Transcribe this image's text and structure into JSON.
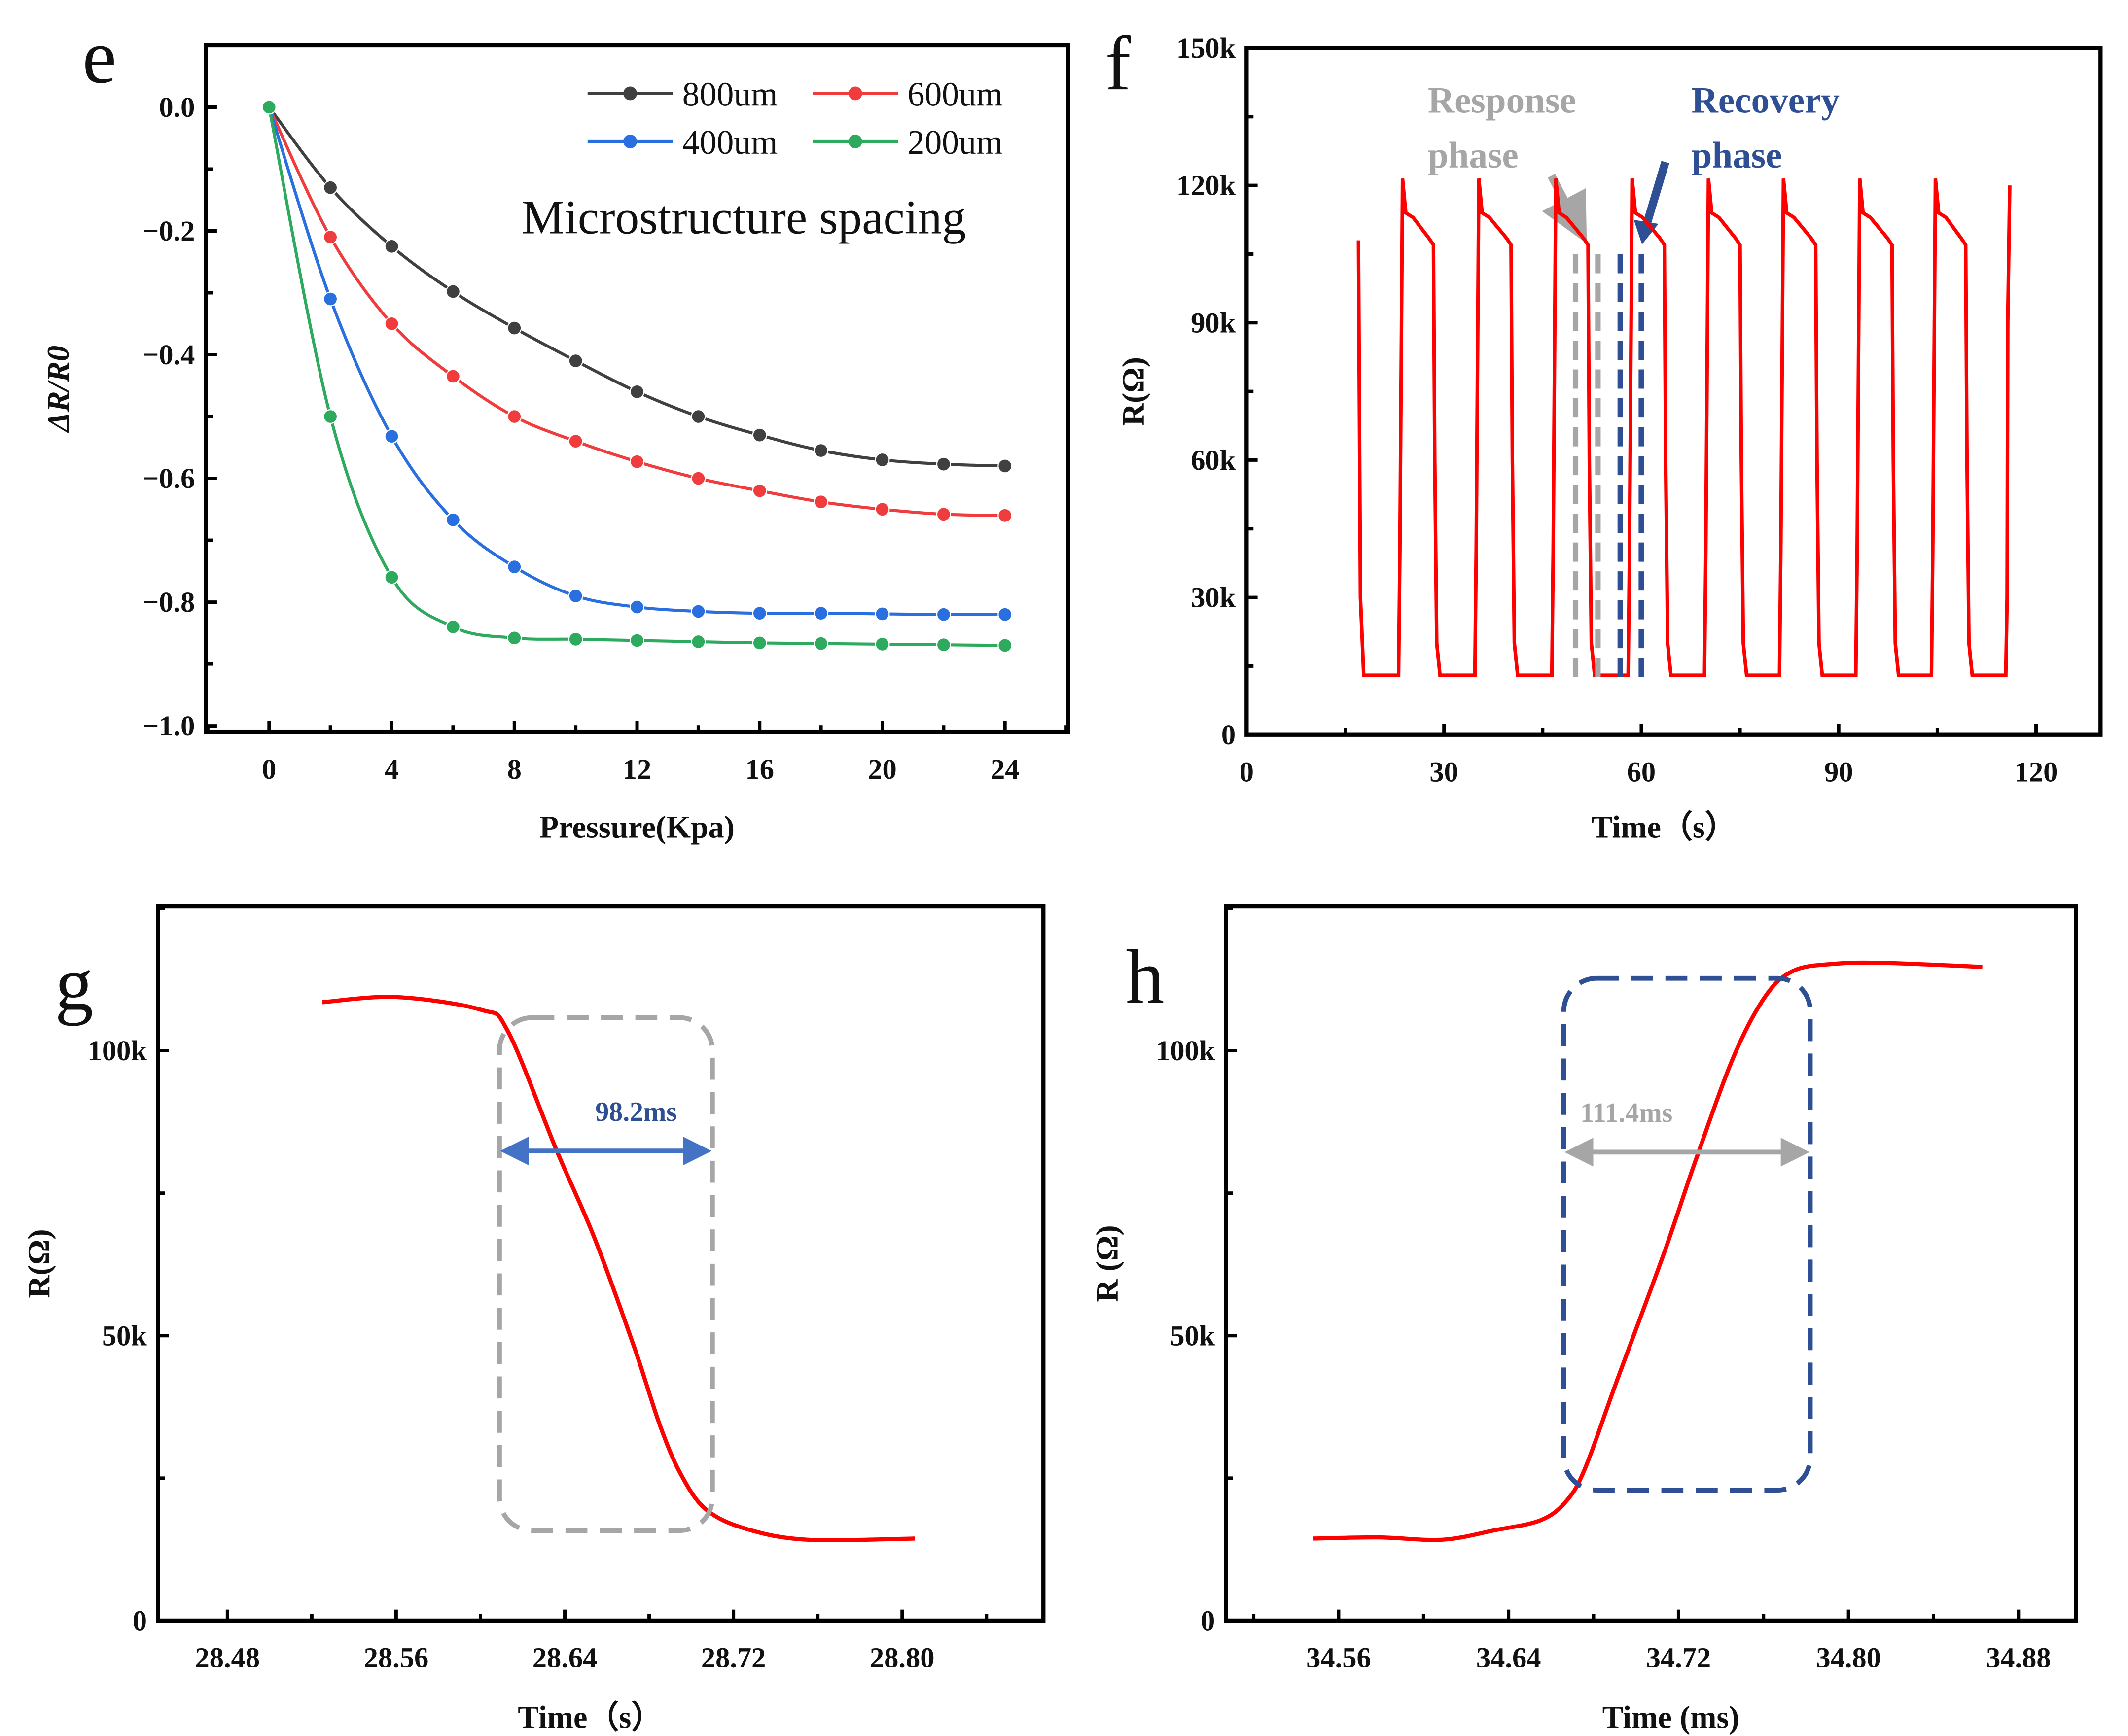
{
  "colors": {
    "red": "#ff0000",
    "gray_annot": "#a6a6a6",
    "blue_annot": "#2e4f94",
    "arrow_blue": "#4472c4"
  },
  "chart_data": [
    {
      "panel": "e",
      "type": "line",
      "xlabel": "Pressure(Kpa)",
      "ylabel": "ΔR/R0",
      "annotation": "Microstructure spacing",
      "xlim": [
        -2.06,
        26.06
      ],
      "ylim": [
        -1.01,
        0.1
      ],
      "xticks": [
        0,
        4,
        8,
        12,
        16,
        20,
        24
      ],
      "xtick_labels": [
        "0",
        "4",
        "8",
        "12",
        "16",
        "20",
        "24"
      ],
      "xminor": 2,
      "yticks": [
        0,
        -0.2,
        -0.4,
        -0.6,
        -0.8,
        -1.0
      ],
      "ytick_labels": [
        "0.0",
        "−0.2",
        "−0.4",
        "−0.6",
        "−0.8",
        "−1.0"
      ],
      "yminor": 0.1,
      "legend_position": "top-right",
      "x": [
        0,
        2,
        4,
        6,
        8,
        10,
        12,
        14,
        16,
        18,
        20,
        22,
        24
      ],
      "series": [
        {
          "name": "800um",
          "color": "#404040",
          "values": [
            0,
            -0.13,
            -0.225,
            -0.298,
            -0.357,
            -0.41,
            -0.46,
            -0.5,
            -0.53,
            -0.555,
            -0.57,
            -0.577,
            -0.58
          ]
        },
        {
          "name": "600um",
          "color": "#f03c3c",
          "values": [
            0,
            -0.21,
            -0.35,
            -0.435,
            -0.5,
            -0.54,
            -0.573,
            -0.6,
            -0.62,
            -0.638,
            -0.65,
            -0.658,
            -0.66
          ]
        },
        {
          "name": "400um",
          "color": "#2a6fe0",
          "values": [
            0,
            -0.31,
            -0.532,
            -0.667,
            -0.743,
            -0.79,
            -0.808,
            -0.815,
            -0.818,
            -0.818,
            -0.819,
            -0.82,
            -0.82
          ]
        },
        {
          "name": "200um",
          "color": "#2eaa5e",
          "values": [
            0,
            -0.5,
            -0.76,
            -0.84,
            -0.858,
            -0.86,
            -0.862,
            -0.864,
            -0.866,
            -0.867,
            -0.868,
            -0.869,
            -0.87
          ]
        }
      ]
    },
    {
      "panel": "f",
      "type": "line",
      "xlabel": "Time（s）",
      "ylabel": "R(Ω)",
      "xlim": [
        0,
        129.8
      ],
      "ylim": [
        0,
        150000
      ],
      "xticks": [
        0,
        30,
        60,
        90,
        120
      ],
      "xtick_labels": [
        "0",
        "30",
        "60",
        "90",
        "120"
      ],
      "xminor": 15,
      "yticks": [
        0,
        30000,
        60000,
        90000,
        120000,
        150000
      ],
      "ytick_labels": [
        "0",
        "30k",
        "60k",
        "90k",
        "120k",
        "150k"
      ],
      "yminor": 15000,
      "signal": {
        "start": {
          "t": 17,
          "r": 108000
        },
        "baseline": 13000,
        "peak": 121500,
        "plateau_end": 107000,
        "cycles": [
          {
            "rise": 23.3,
            "fall": 28.5
          },
          {
            "rise": 34.9,
            "fall": 40.3
          },
          {
            "rise": 46.6,
            "fall": 52.0
          },
          {
            "rise": 58.2,
            "fall": 63.6
          },
          {
            "rise": 69.8,
            "fall": 75.1
          },
          {
            "rise": 81.2,
            "fall": 86.6
          },
          {
            "rise": 92.8,
            "fall": 98.2
          },
          {
            "rise": 104.3,
            "fall": 109.4
          }
        ],
        "end": {
          "rise": 115.6,
          "t": 116,
          "r": 120000
        }
      },
      "response_label": [
        "Response",
        "phase"
      ],
      "recovery_label": [
        "Recovery",
        "phase"
      ],
      "response_lines_t": [
        50.0,
        53.4
      ],
      "recovery_lines_t": [
        56.8,
        60.0
      ],
      "phase_lines_r": [
        105000,
        11000
      ]
    },
    {
      "panel": "g",
      "type": "line",
      "xlabel": "Time（s）",
      "ylabel": "R(Ω)",
      "xlim": [
        28.447,
        28.867
      ],
      "ylim": [
        0,
        125300
      ],
      "xticks": [
        28.48,
        28.56,
        28.64,
        28.72,
        28.8
      ],
      "xtick_labels": [
        "28.48",
        "28.56",
        "28.64",
        "28.72",
        "28.80"
      ],
      "xminor": 0.04,
      "yticks": [
        0,
        50000,
        100000
      ],
      "ytick_labels": [
        "0",
        "50k",
        "100k"
      ],
      "yminor": 25000,
      "x": [
        28.525,
        28.56,
        28.6,
        28.613,
        28.636,
        28.654,
        28.673,
        28.685,
        28.695,
        28.707,
        28.726,
        28.755,
        28.806
      ],
      "values": [
        108500,
        109400,
        107200,
        103400,
        82600,
        67200,
        47900,
        34400,
        25700,
        19500,
        16100,
        14200,
        14400
      ],
      "interval": {
        "label": "98.2ms",
        "from": 28.609,
        "to": 28.71,
        "r": 82400,
        "box_r": [
          105800,
          15800
        ]
      }
    },
    {
      "panel": "h",
      "type": "line",
      "xlabel": "Time (ms)",
      "ylabel": "R (Ω)",
      "xlim": [
        34.507,
        34.907
      ],
      "ylim": [
        0,
        125300
      ],
      "xticks": [
        34.56,
        34.64,
        34.72,
        34.8,
        34.88
      ],
      "xtick_labels": [
        "34.56",
        "34.64",
        "34.72",
        "34.80",
        "34.88"
      ],
      "xminor": 0.04,
      "yticks": [
        0,
        50000,
        100000
      ],
      "ytick_labels": [
        "0",
        "50k",
        "100k"
      ],
      "yminor": 25000,
      "x": [
        34.548,
        34.579,
        34.609,
        34.634,
        34.655,
        34.667,
        34.676,
        34.691,
        34.713,
        34.728,
        34.746,
        34.761,
        34.774,
        34.792,
        34.816,
        34.863
      ],
      "values": [
        14400,
        14600,
        14200,
        15900,
        17600,
        20900,
        26700,
        42100,
        64300,
        80700,
        99000,
        109600,
        114000,
        115200,
        115400,
        114700
      ],
      "interval": {
        "label": "111.4ms",
        "from": 34.666,
        "to": 34.782,
        "r": 82200,
        "box_r": [
          112700,
          22900
        ]
      }
    }
  ]
}
